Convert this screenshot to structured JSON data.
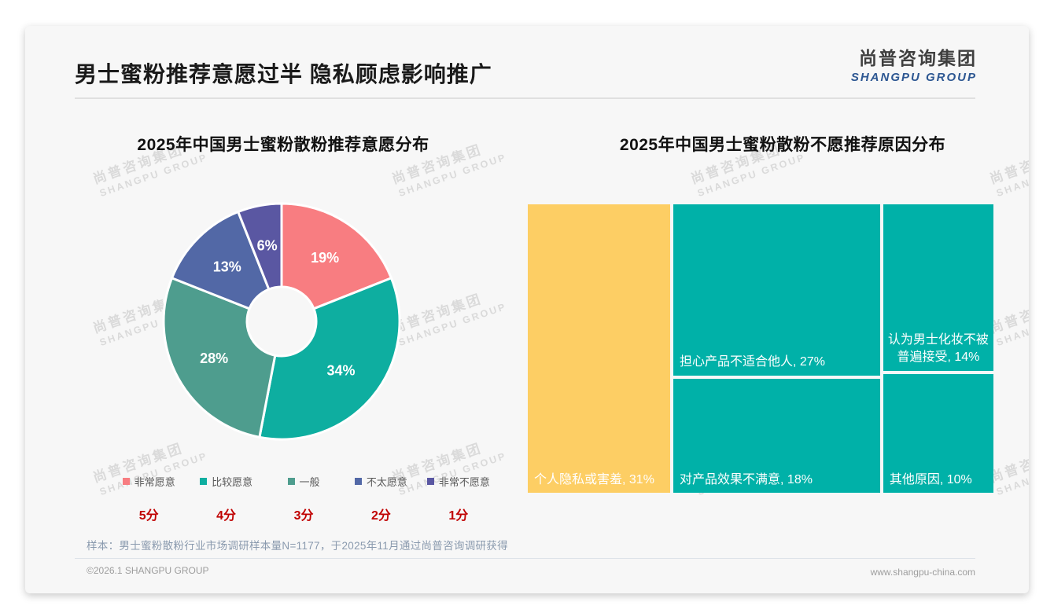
{
  "page": {
    "title": "男士蜜粉推荐意愿过半 隐私顾虑影响推广",
    "logo": {
      "cn": "尚普咨询集团",
      "en": "SHANGPU GROUP"
    },
    "watermark": {
      "cn": "尚普咨询集团",
      "en": "SHANGPU GROUP"
    },
    "sample_note": "样本：男士蜜粉散粉行业市场调研样本量N=1177，于2025年11月通过尚普咨询调研获得",
    "footer": {
      "copyright": "©2026.1 SHANGPU GROUP",
      "website": "www.shangpu-china.com"
    }
  },
  "colors": {
    "score_red": "#c00000",
    "logo_blue": "#2d5792",
    "treemap_teal": "#00b1a8",
    "treemap_yellow": "#fdce64"
  },
  "chart_data": [
    {
      "type": "pie",
      "subtype": "donut",
      "title": "2025年中国男士蜜粉散粉推荐意愿分布",
      "categories": [
        "非常愿意",
        "比较愿意",
        "一般",
        "不太愿意",
        "非常不愿意"
      ],
      "values": [
        19,
        34,
        28,
        13,
        6
      ],
      "data_labels": [
        "19%",
        "34%",
        "28%",
        "13%",
        "6%"
      ],
      "scores": [
        "5分",
        "4分",
        "3分",
        "2分",
        "1分"
      ],
      "colors": [
        "#f87d81",
        "#0eaea0",
        "#4e9d8e",
        "#5268a6",
        "#5a57a2"
      ],
      "legend_position": "bottom",
      "start_angle_deg": 0,
      "direction": "clockwise"
    },
    {
      "type": "treemap",
      "title": "2025年中国男士蜜粉散粉不愿推荐原因分布",
      "items": [
        {
          "name": "个人隐私或害羞",
          "value": 31,
          "label": "个人隐私或害羞, 31%",
          "color": "#fdce64"
        },
        {
          "name": "担心产品不适合他人",
          "value": 27,
          "label": "担心产品不适合他人, 27%",
          "color": "#00b1a8"
        },
        {
          "name": "对产品效果不满意",
          "value": 18,
          "label": "对产品效果不满意, 18%",
          "color": "#00b1a8"
        },
        {
          "name": "认为男士化妆不被普遍接受",
          "value": 14,
          "label": "认为男士化妆不被普遍接受, 14%",
          "color": "#00b1a8"
        },
        {
          "name": "其他原因",
          "value": 10,
          "label": "其他原因, 10%",
          "color": "#00b1a8"
        }
      ]
    }
  ]
}
